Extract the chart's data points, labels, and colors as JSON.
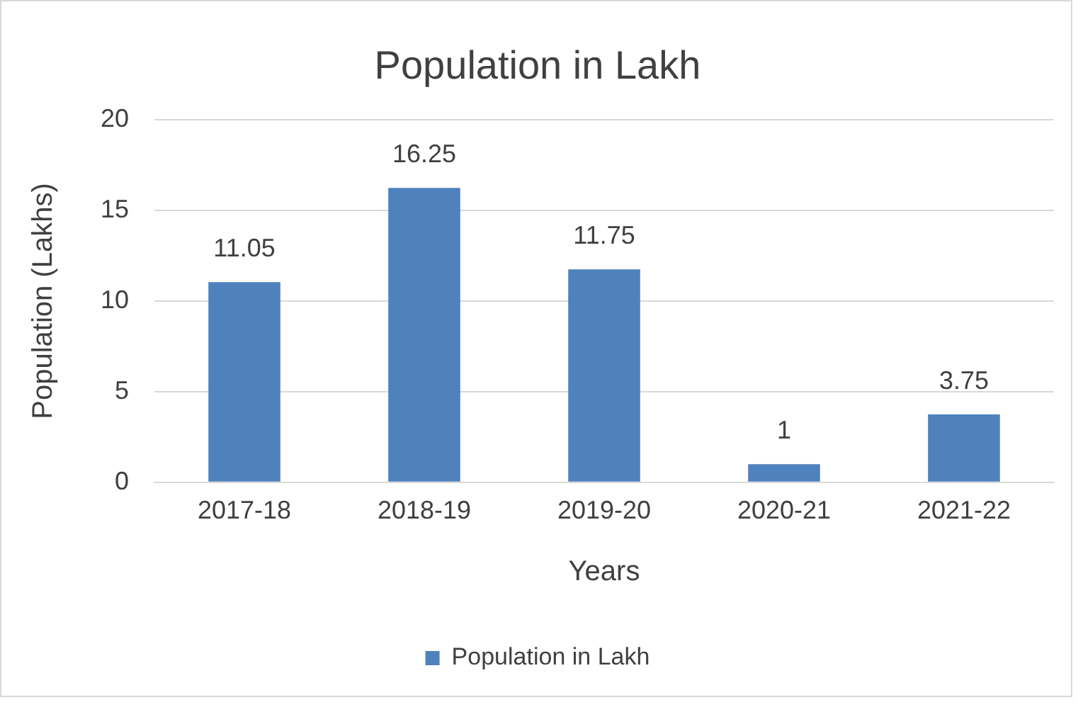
{
  "chart_data": {
    "type": "bar",
    "title": "Population in Lakh",
    "xlabel": "Years",
    "ylabel": "Population (Lakhs)",
    "categories": [
      "2017-18",
      "2018-19",
      "2019-20",
      "2020-21",
      "2021-22"
    ],
    "series": [
      {
        "name": "Population in Lakh",
        "color": "#4f81bd",
        "values": [
          11.05,
          16.25,
          11.75,
          1,
          3.75
        ]
      }
    ],
    "ylim": [
      0,
      20
    ],
    "yticks": [
      0,
      5,
      10,
      15,
      20
    ],
    "grid": "y",
    "legend": "bottom",
    "data_labels": true
  }
}
